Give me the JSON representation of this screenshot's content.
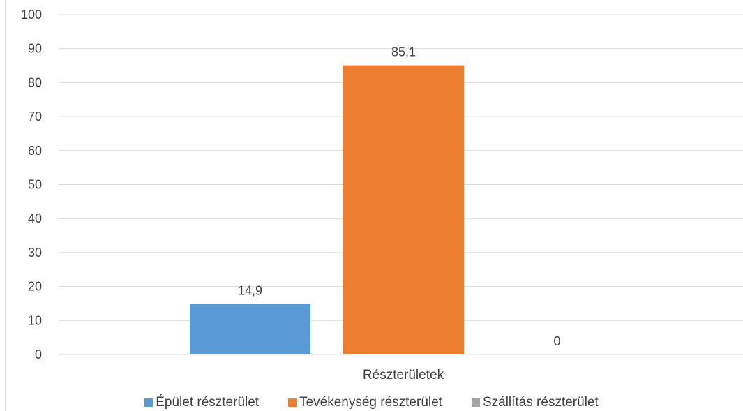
{
  "chart_data": {
    "type": "bar",
    "categories": [
      "Részterületek"
    ],
    "series": [
      {
        "name": "Épület részterület",
        "values": [
          14.9
        ],
        "label": "14,9",
        "color": "#5b9bd5"
      },
      {
        "name": "Tevékenység részterület",
        "values": [
          85.1
        ],
        "label": "85,1",
        "color": "#ed7d31"
      },
      {
        "name": "Szállítás részterület",
        "values": [
          0
        ],
        "label": "0",
        "color": "#a5a5a5"
      }
    ],
    "y_ticks": [
      "0",
      "10",
      "20",
      "30",
      "40",
      "50",
      "60",
      "70",
      "80",
      "90",
      "100"
    ],
    "ylim": [
      0,
      100
    ],
    "xlabel": "",
    "ylabel": "",
    "grid": true,
    "legend_position": "bottom"
  }
}
